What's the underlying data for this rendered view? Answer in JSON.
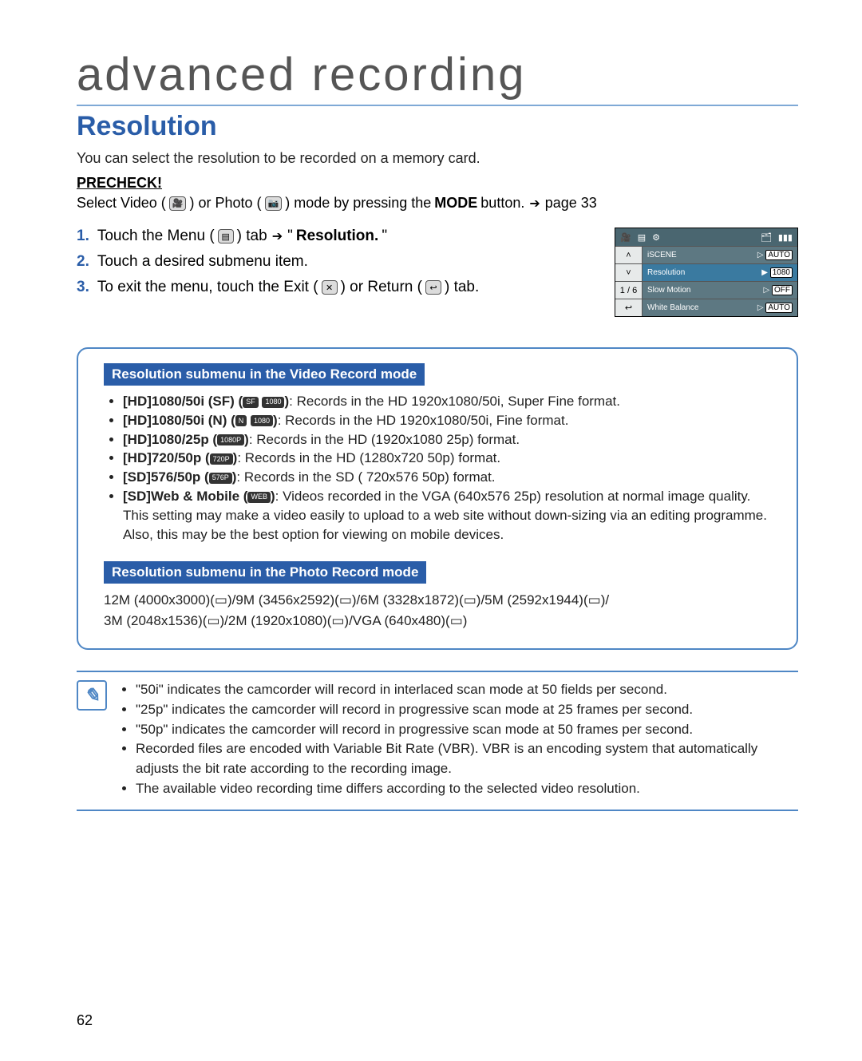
{
  "chapter_title": "advanced recording",
  "section_title": "Resolution",
  "intro": "You can select the resolution to be recorded on a memory card.",
  "precheck_label": "PRECHECK!",
  "precheck": {
    "p1": "Select Video (",
    "p2": ") or Photo (",
    "p3": ") mode by pressing the ",
    "mode": "MODE",
    "p4": " button. ",
    "page_ref": "page 33"
  },
  "steps": [
    {
      "num": "1.",
      "a": "Touch the Menu (",
      "b": ") tab ",
      "c": "\"",
      "bold": "Resolution.",
      "d": "\""
    },
    {
      "num": "2.",
      "a": "Touch a desired submenu item."
    },
    {
      "num": "3.",
      "a": "To exit the menu, touch the Exit (",
      "b": ") or Return (",
      "c": ") tab."
    }
  ],
  "menu_screenshot": {
    "page_indicator": "1 / 6",
    "rows": [
      {
        "label": "iSCENE",
        "right": "AUTO"
      },
      {
        "label": "Resolution",
        "right": "1080",
        "selected": true
      },
      {
        "label": "Slow Motion",
        "right": "OFF"
      },
      {
        "label": "White Balance",
        "right": "AUTO"
      }
    ]
  },
  "video_heading": "Resolution submenu in the Video Record mode",
  "video_items": [
    {
      "lead": "[HD]1080/50i (SF) (",
      "desc": "Records in the HD 1920x1080/50i, Super Fine format."
    },
    {
      "lead": "[HD]1080/50i (N) (",
      "desc": "Records in the HD 1920x1080/50i, Fine format."
    },
    {
      "lead": "[HD]1080/25p (",
      "desc": "Records in the HD (1920x1080 25p) format."
    },
    {
      "lead": "[HD]720/50p (",
      "desc": "Records in the HD (1280x720 50p) format."
    },
    {
      "lead": "[SD]576/50p (",
      "desc": "Records in the SD ( 720x576 50p) format."
    },
    {
      "lead": "[SD]Web & Mobile (",
      "desc": "Videos recorded in the VGA (640x576 25p) resolution at normal image quality. This setting may make a video easily to upload to a web site without down-sizing via an editing programme. Also, this may be the best option for viewing on mobile devices."
    }
  ],
  "photo_heading": "Resolution submenu in the Photo Record mode",
  "photo_line1": "12M (4000x3000)(▭)/9M (3456x2592)(▭)/6M (3328x1872)(▭)/5M (2592x1944)(▭)/",
  "photo_line2": "3M (2048x1536)(▭)/2M (1920x1080)(▭)/VGA (640x480)(▭)",
  "notes": [
    "\"50i\" indicates the camcorder will record in interlaced scan mode at 50 fields per second.",
    "\"25p\" indicates the camcorder will record in progressive scan mode at 25 frames per second.",
    "\"50p\" indicates the camcorder will record in progressive scan mode at 50 frames per second.",
    "Recorded files are encoded with Variable Bit Rate (VBR). VBR is an encoding system that automatically adjusts the bit rate according to the recording image.",
    "The available video recording time differs according to the selected video resolution."
  ],
  "page_number": "62",
  "icons": {
    "video": "🎥",
    "photo": "📷",
    "menu": "▤",
    "exit": "✕",
    "return": "↩",
    "gear": "⚙",
    "card": "🗂",
    "battery": "▮▮▮",
    "up": "˄",
    "down": "˅",
    "play": "▷",
    "playfill": "▶",
    "note": "✎",
    "badge1080": "1080",
    "badge720p": "720P",
    "badge1080p": "1080P",
    "badge576p": "576P",
    "badgeWeb": "WEB",
    "badgeSF": "SF",
    "badgeN": "N"
  }
}
